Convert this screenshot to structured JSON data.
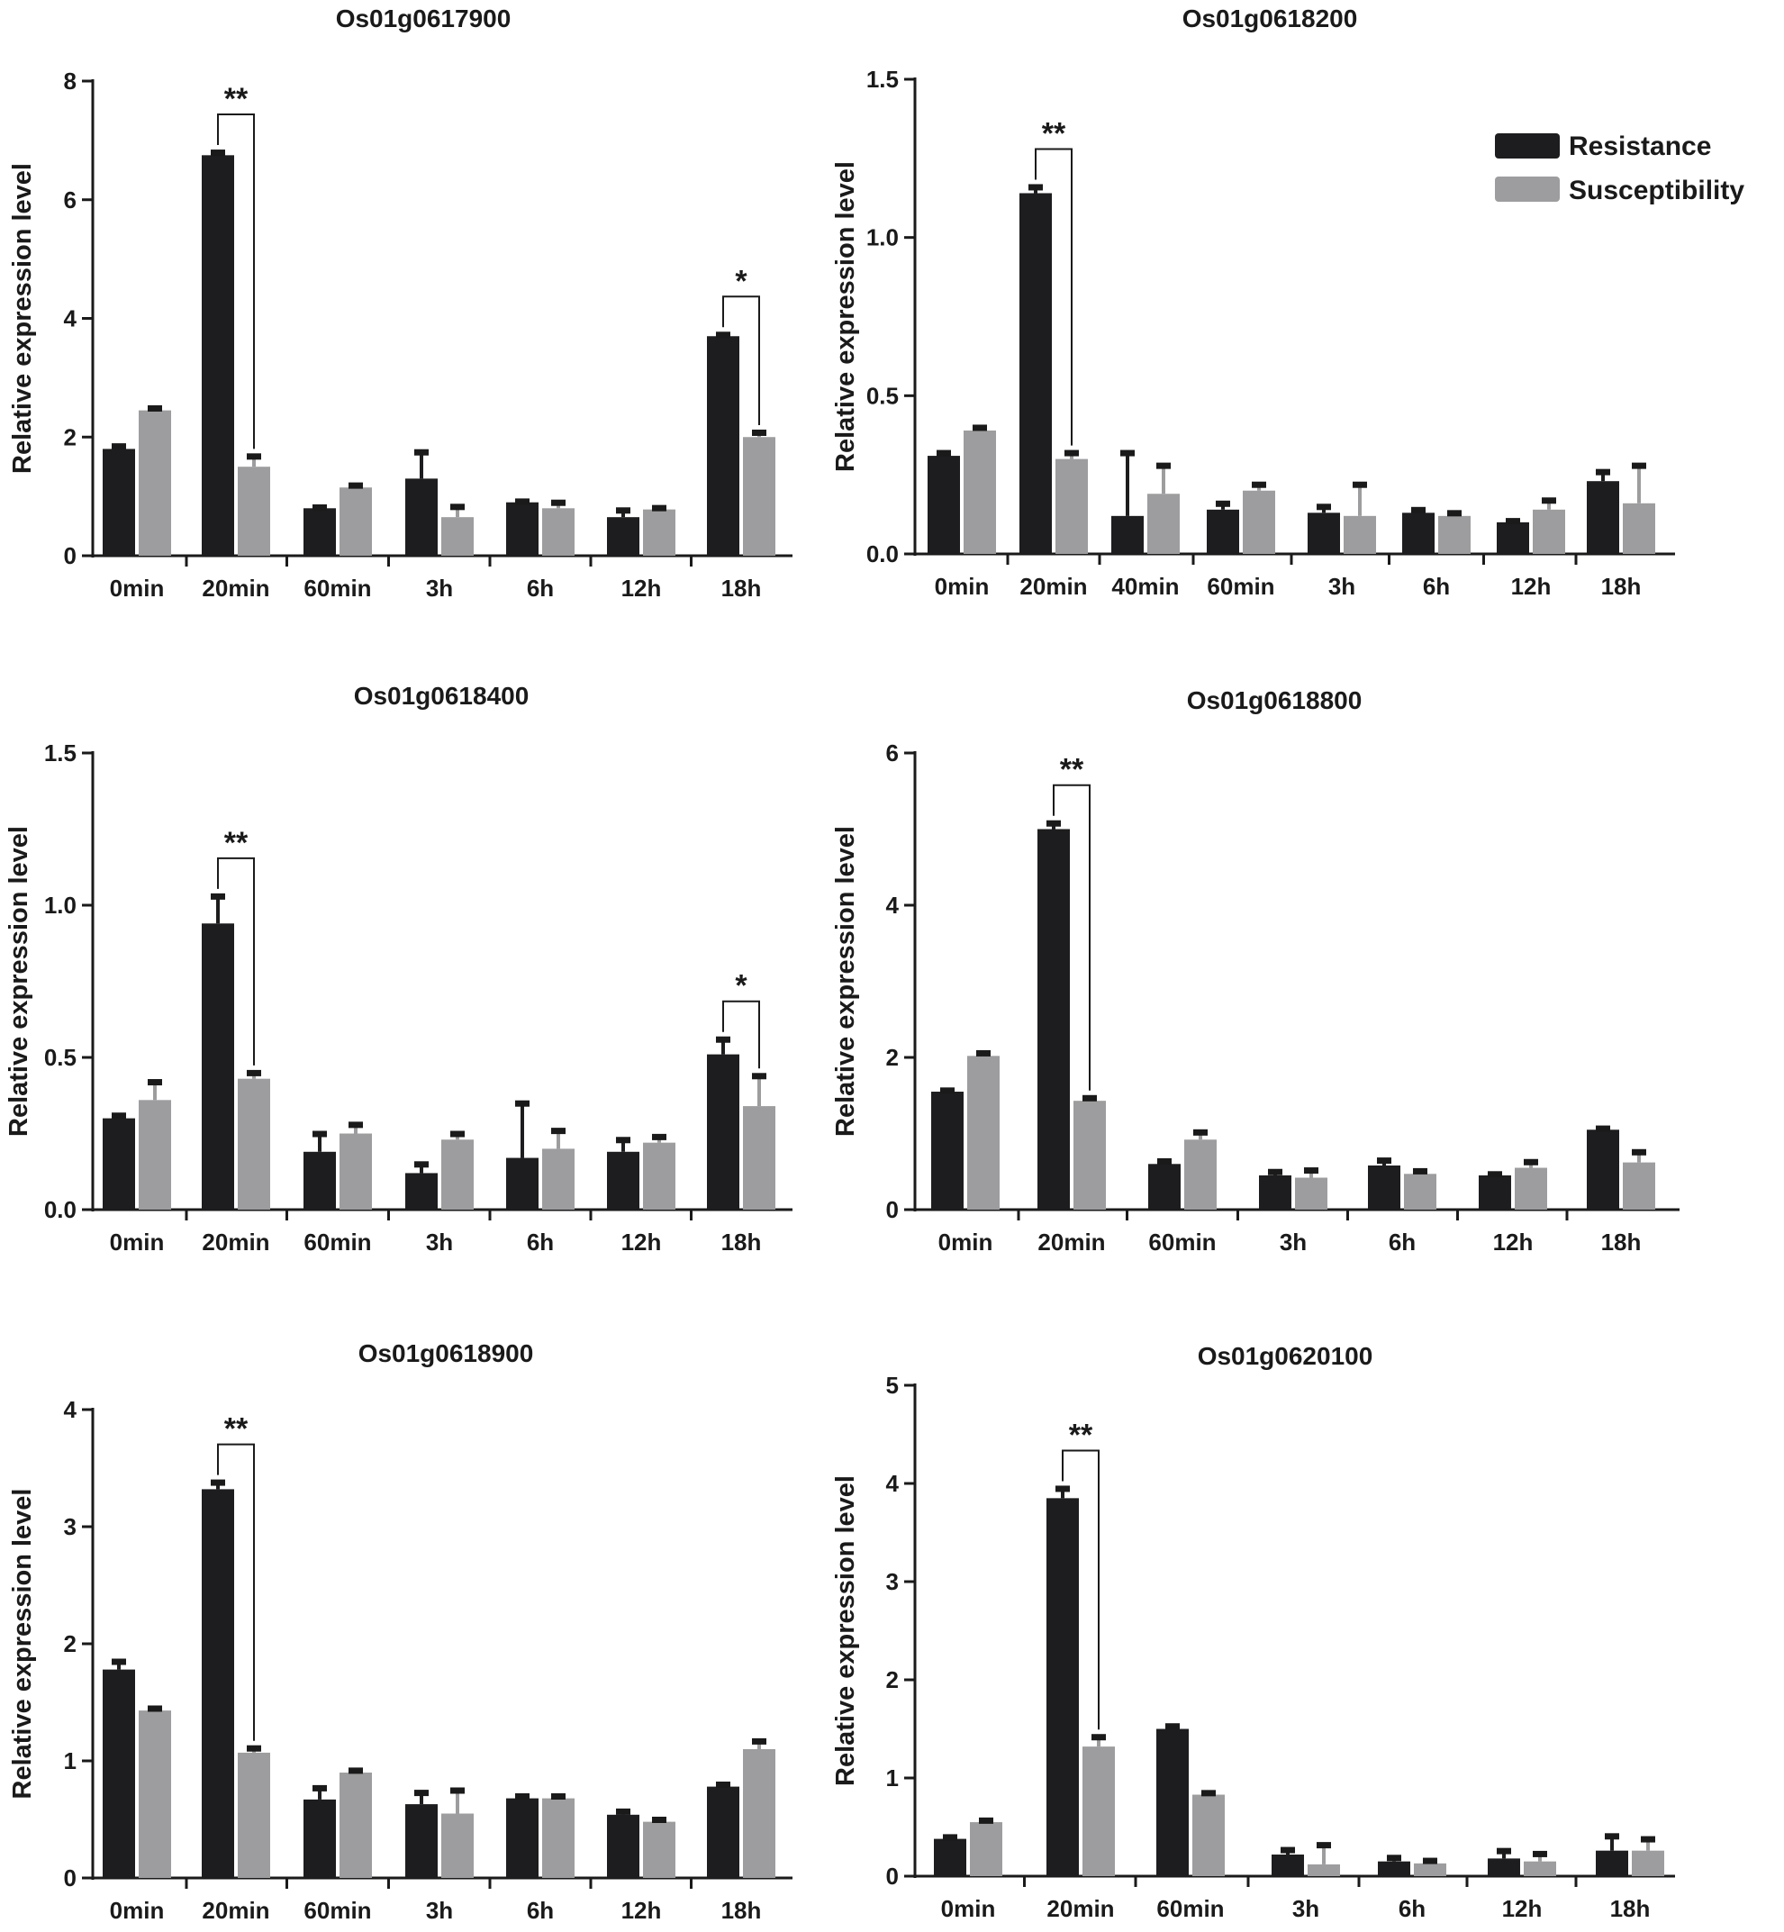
{
  "colors": {
    "resistance": "#1d1d1f",
    "susceptibility": "#9d9d9f",
    "axis": "#1a1a1a"
  },
  "legend": {
    "resistance": "Resistance",
    "susceptibility": "Susceptibility",
    "placement": "top-right of Os01g0618200 panel"
  },
  "chart_data": [
    {
      "type": "bar",
      "title": "Os01g0617900",
      "ylabel": "Relative expression level",
      "xlabel": "",
      "ylim": [
        0,
        8
      ],
      "yticks": [
        "0",
        "2",
        "4",
        "6",
        "8"
      ],
      "categories": [
        "0min",
        "20min",
        "60min",
        "3h",
        "6h",
        "12h",
        "18h"
      ],
      "series": [
        {
          "name": "Resistance",
          "values": [
            1.8,
            6.75,
            0.8,
            1.3,
            0.9,
            0.65,
            3.7
          ],
          "errors": [
            0.05,
            0.05,
            0.02,
            0.45,
            0.02,
            0.12,
            0.03
          ]
        },
        {
          "name": "Susceptibility",
          "values": [
            2.45,
            1.5,
            1.15,
            0.65,
            0.8,
            0.78,
            2.0
          ],
          "errors": [
            0.04,
            0.18,
            0.04,
            0.18,
            0.1,
            0.03,
            0.08
          ]
        }
      ],
      "significance": [
        {
          "category": "20min",
          "label": "**"
        },
        {
          "category": "18h",
          "label": "*"
        }
      ]
    },
    {
      "type": "bar",
      "title": "Os01g0618200",
      "ylabel": "Relative expression level",
      "xlabel": "",
      "ylim": [
        0,
        1.5
      ],
      "yticks": [
        "0.0",
        "0.5",
        "1.0",
        "1.5"
      ],
      "categories": [
        "0min",
        "20min",
        "40min",
        "60min",
        "3h",
        "6h",
        "12h",
        "18h"
      ],
      "series": [
        {
          "name": "Resistance",
          "values": [
            0.31,
            1.14,
            0.12,
            0.14,
            0.13,
            0.13,
            0.1,
            0.23
          ],
          "errors": [
            0.01,
            0.02,
            0.2,
            0.02,
            0.02,
            0.01,
            0.005,
            0.03
          ]
        },
        {
          "name": "Susceptibility",
          "values": [
            0.39,
            0.3,
            0.19,
            0.2,
            0.12,
            0.12,
            0.14,
            0.16
          ],
          "errors": [
            0.01,
            0.02,
            0.09,
            0.02,
            0.1,
            0.01,
            0.03,
            0.12
          ]
        }
      ],
      "significance": [
        {
          "category": "20min",
          "label": "**"
        }
      ]
    },
    {
      "type": "bar",
      "title": "Os01g0618400",
      "ylabel": "Relative expression level",
      "xlabel": "",
      "ylim": [
        0,
        1.5
      ],
      "yticks": [
        "0.0",
        "0.5",
        "1.0",
        "1.5"
      ],
      "categories": [
        "0min",
        "20min",
        "60min",
        "3h",
        "6h",
        "12h",
        "18h"
      ],
      "series": [
        {
          "name": "Resistance",
          "values": [
            0.3,
            0.94,
            0.19,
            0.12,
            0.17,
            0.19,
            0.51
          ],
          "errors": [
            0.01,
            0.09,
            0.06,
            0.03,
            0.18,
            0.04,
            0.05
          ]
        },
        {
          "name": "Susceptibility",
          "values": [
            0.36,
            0.43,
            0.25,
            0.23,
            0.2,
            0.22,
            0.34
          ],
          "errors": [
            0.06,
            0.02,
            0.03,
            0.02,
            0.06,
            0.02,
            0.1
          ]
        }
      ],
      "significance": [
        {
          "category": "20min",
          "label": "**"
        },
        {
          "category": "18h",
          "label": "*"
        }
      ]
    },
    {
      "type": "bar",
      "title": "Os01g0618800",
      "ylabel": "Relative expression level",
      "xlabel": "",
      "ylim": [
        0,
        6
      ],
      "yticks": [
        "0",
        "2",
        "4",
        "6"
      ],
      "categories": [
        "0min",
        "20min",
        "60min",
        "3h",
        "6h",
        "12h",
        "18h"
      ],
      "series": [
        {
          "name": "Resistance",
          "values": [
            1.55,
            5.0,
            0.6,
            0.45,
            0.58,
            0.45,
            1.05
          ],
          "errors": [
            0.02,
            0.08,
            0.04,
            0.05,
            0.07,
            0.02,
            0.02
          ]
        },
        {
          "name": "Susceptibility",
          "values": [
            2.02,
            1.43,
            0.92,
            0.42,
            0.47,
            0.55,
            0.62
          ],
          "errors": [
            0.04,
            0.04,
            0.1,
            0.1,
            0.04,
            0.08,
            0.14
          ]
        }
      ],
      "significance": [
        {
          "category": "20min",
          "label": "**"
        }
      ]
    },
    {
      "type": "bar",
      "title": "Os01g0618900",
      "ylabel": "Relative expression level",
      "xlabel": "",
      "ylim": [
        0,
        4
      ],
      "yticks": [
        "0",
        "1",
        "2",
        "3",
        "4"
      ],
      "categories": [
        "0min",
        "20min",
        "60min",
        "3h",
        "6h",
        "12h",
        "18h"
      ],
      "series": [
        {
          "name": "Resistance",
          "values": [
            1.78,
            3.32,
            0.67,
            0.63,
            0.68,
            0.54,
            0.78
          ],
          "errors": [
            0.07,
            0.06,
            0.1,
            0.1,
            0.02,
            0.03,
            0.02
          ]
        },
        {
          "name": "Susceptibility",
          "values": [
            1.43,
            1.07,
            0.9,
            0.55,
            0.68,
            0.48,
            1.1
          ],
          "errors": [
            0.02,
            0.04,
            0.02,
            0.2,
            0.02,
            0.02,
            0.07
          ]
        }
      ],
      "significance": [
        {
          "category": "20min",
          "label": "**"
        }
      ]
    },
    {
      "type": "bar",
      "title": "Os01g0620100",
      "ylabel": "Relative expression level",
      "xlabel": "",
      "ylim": [
        0,
        5
      ],
      "yticks": [
        "0",
        "1",
        "2",
        "3",
        "4",
        "5"
      ],
      "categories": [
        "0min",
        "20min",
        "60min",
        "3h",
        "6h",
        "12h",
        "18h"
      ],
      "series": [
        {
          "name": "Resistance",
          "values": [
            0.38,
            3.85,
            1.5,
            0.22,
            0.15,
            0.18,
            0.26
          ],
          "errors": [
            0.02,
            0.1,
            0.03,
            0.05,
            0.04,
            0.08,
            0.15
          ]
        },
        {
          "name": "Susceptibility",
          "values": [
            0.55,
            1.32,
            0.83,
            0.12,
            0.13,
            0.15,
            0.26
          ],
          "errors": [
            0.02,
            0.1,
            0.02,
            0.2,
            0.03,
            0.08,
            0.12
          ]
        }
      ],
      "significance": [
        {
          "category": "20min",
          "label": "**"
        }
      ]
    }
  ]
}
